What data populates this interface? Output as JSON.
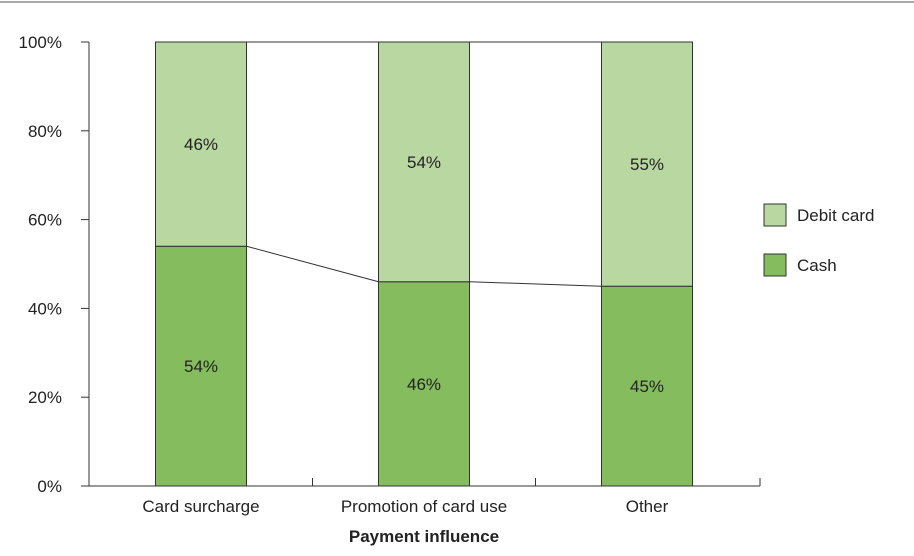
{
  "chart_data": {
    "type": "bar",
    "stacked": true,
    "percent": true,
    "categories": [
      "Card surcharge",
      "Promotion of card use",
      "Other"
    ],
    "series": [
      {
        "name": "Cash",
        "values": [
          54,
          46,
          45
        ],
        "labels": [
          "54%",
          "46%",
          "45%"
        ],
        "color": "#85bc5e"
      },
      {
        "name": "Debit card",
        "values": [
          46,
          54,
          55
        ],
        "labels": [
          "46%",
          "54%",
          "55%"
        ],
        "color": "#b9d7a1"
      }
    ],
    "xlabel": "Payment influence",
    "ylabel": "",
    "ylim": [
      0,
      100
    ],
    "yticks": [
      0,
      20,
      40,
      60,
      80,
      100
    ],
    "ytick_labels": [
      "0%",
      "20%",
      "40%",
      "60%",
      "80%",
      "100%"
    ],
    "legend": {
      "position": "right",
      "entries": [
        "Debit card",
        "Cash"
      ]
    },
    "connector_lines": true,
    "grid": false
  },
  "colors": {
    "axis": "#333333",
    "rule": "#555555",
    "bar_edge": "#333333"
  }
}
